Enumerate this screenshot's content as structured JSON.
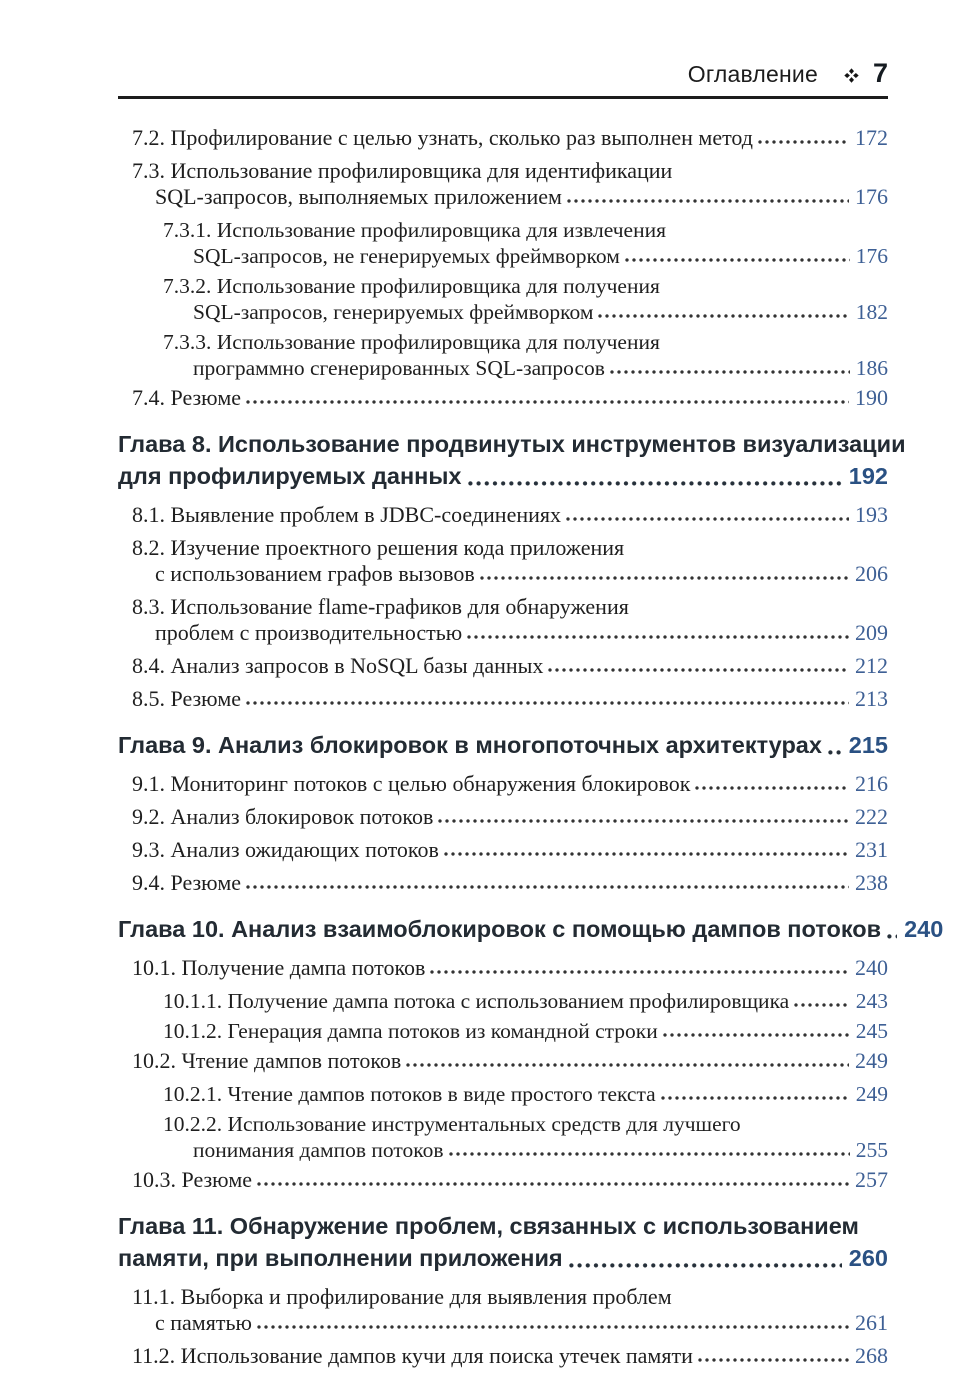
{
  "header": {
    "section_title": "Оглавление",
    "ornament_icon": "four-diamond",
    "page_number": "7"
  },
  "colors": {
    "body_text": "#1f1f1f",
    "chapter_text": "#232b33",
    "chapter_page_number": "#2a5183",
    "entry_page_number": "#3e6095",
    "rule": "#1d1d1d"
  },
  "toc": {
    "entries": [
      {
        "kind": "entry",
        "level": 1,
        "lines": [
          "7.2. Профилирование с целью узнать, сколько раз выполнен метод"
        ],
        "page": "172"
      },
      {
        "kind": "entry",
        "level": 1,
        "lines": [
          "7.3. Использование профилировщика для идентификации",
          "SQL-запросов, выполняемых приложением"
        ],
        "page": "176"
      },
      {
        "kind": "entry",
        "level": 2,
        "lines": [
          "7.3.1. Использование профилировщика для извлечения",
          "SQL-запросов, не генерируемых фреймворком"
        ],
        "page": "176"
      },
      {
        "kind": "entry",
        "level": 2,
        "lines": [
          "7.3.2. Использование профилировщика для получения",
          "SQL-запросов, генерируемых фреймворком"
        ],
        "page": "182"
      },
      {
        "kind": "entry",
        "level": 2,
        "lines": [
          "7.3.3. Использование профилировщика для получения",
          "программно сгенерированных SQL-запросов"
        ],
        "page": "186"
      },
      {
        "kind": "entry",
        "level": 1,
        "lines": [
          "7.4. Резюме"
        ],
        "page": "190"
      },
      {
        "kind": "chapter",
        "level": 0,
        "lines": [
          "Глава 8. Использование продвинутых инструментов визуализации",
          "для профилируемых данных"
        ],
        "page": "192"
      },
      {
        "kind": "entry",
        "level": 1,
        "lines": [
          "8.1. Выявление проблем в JDBC-соединениях"
        ],
        "page": "193"
      },
      {
        "kind": "entry",
        "level": 1,
        "lines": [
          "8.2. Изучение проектного решения кода приложения",
          "с использованием графов вызовов"
        ],
        "page": "206"
      },
      {
        "kind": "entry",
        "level": 1,
        "lines": [
          "8.3. Использование flame-графиков для обнаружения",
          "проблем с производительностью"
        ],
        "page": "209"
      },
      {
        "kind": "entry",
        "level": 1,
        "lines": [
          "8.4. Анализ запросов в NoSQL базы данных"
        ],
        "page": "212"
      },
      {
        "kind": "entry",
        "level": 1,
        "lines": [
          "8.5. Резюме"
        ],
        "page": "213"
      },
      {
        "kind": "chapter",
        "level": 0,
        "lines": [
          "Глава 9. Анализ блокировок в многопоточных архитектурах"
        ],
        "page": "215"
      },
      {
        "kind": "entry",
        "level": 1,
        "lines": [
          "9.1. Мониторинг потоков с целью обнаружения блокировок"
        ],
        "page": "216"
      },
      {
        "kind": "entry",
        "level": 1,
        "lines": [
          "9.2. Анализ блокировок потоков"
        ],
        "page": "222"
      },
      {
        "kind": "entry",
        "level": 1,
        "lines": [
          "9.3. Анализ ожидающих потоков"
        ],
        "page": "231"
      },
      {
        "kind": "entry",
        "level": 1,
        "lines": [
          "9.4. Резюме"
        ],
        "page": "238"
      },
      {
        "kind": "chapter",
        "level": 0,
        "lines": [
          "Глава 10. Анализ взаимоблокировок с помощью дампов потоков"
        ],
        "page": "240"
      },
      {
        "kind": "entry",
        "level": 1,
        "lines": [
          "10.1. Получение дампа потоков"
        ],
        "page": "240"
      },
      {
        "kind": "entry",
        "level": 2,
        "lines": [
          "10.1.1. Получение дампа потока с использованием профилировщика"
        ],
        "page": "243"
      },
      {
        "kind": "entry",
        "level": 2,
        "lines": [
          "10.1.2. Генерация дампа потоков из командной строки"
        ],
        "page": "245"
      },
      {
        "kind": "entry",
        "level": 1,
        "lines": [
          "10.2. Чтение дампов потоков"
        ],
        "page": "249"
      },
      {
        "kind": "entry",
        "level": 2,
        "lines": [
          "10.2.1. Чтение дампов потоков в виде простого текста"
        ],
        "page": "249"
      },
      {
        "kind": "entry",
        "level": 2,
        "lines": [
          "10.2.2. Использование инструментальных средств для лучшего",
          "понимания дампов потоков"
        ],
        "page": "255"
      },
      {
        "kind": "entry",
        "level": 1,
        "lines": [
          "10.3. Резюме"
        ],
        "page": "257"
      },
      {
        "kind": "chapter",
        "level": 0,
        "lines": [
          "Глава 11. Обнаружение проблем, связанных с использованием",
          "памяти, при выполнении приложения"
        ],
        "page": "260"
      },
      {
        "kind": "entry",
        "level": 1,
        "lines": [
          "11.1. Выборка и профилирование для выявления проблем",
          "с памятью"
        ],
        "page": "261"
      },
      {
        "kind": "entry",
        "level": 1,
        "lines": [
          "11.2. Использование дампов кучи для поиска утечек памяти"
        ],
        "page": "268"
      }
    ]
  }
}
